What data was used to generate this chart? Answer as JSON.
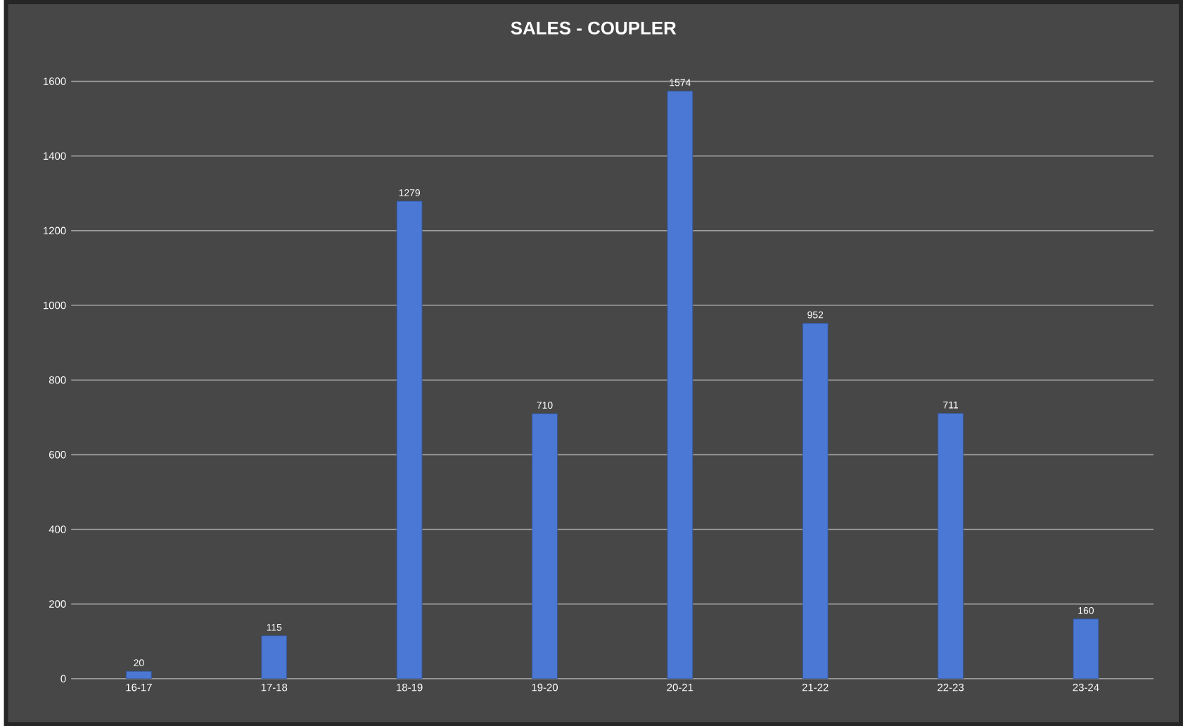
{
  "chart_data": {
    "type": "bar",
    "title": "SALES - COUPLER",
    "categories": [
      "16-17",
      "17-18",
      "18-19",
      "19-20",
      "20-21",
      "21-22",
      "22-23",
      "23-24"
    ],
    "values": [
      20,
      115,
      1279,
      710,
      1574,
      952,
      711,
      160
    ],
    "color": "#4a78d4",
    "ylim": [
      0,
      1600
    ],
    "yticks": [
      0,
      200,
      400,
      600,
      800,
      1000,
      1200,
      1400,
      1600
    ],
    "grid": "y",
    "data_labels": true
  }
}
